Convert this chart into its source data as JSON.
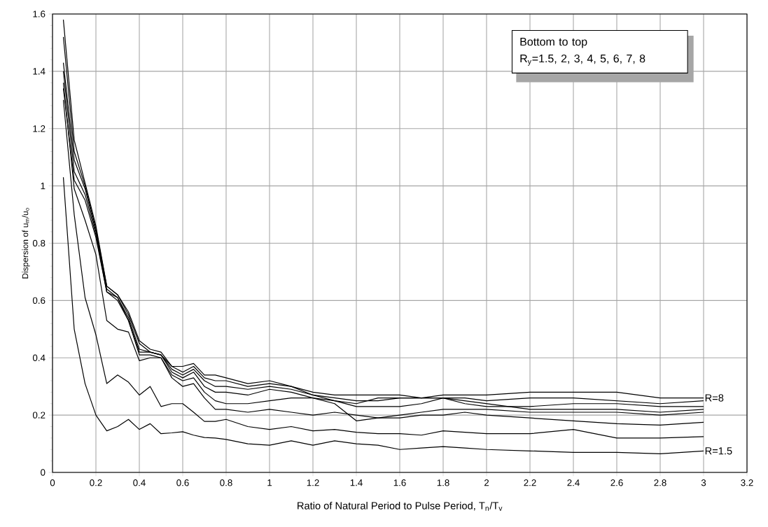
{
  "chart_data": {
    "type": "line",
    "xlabel": "Ratio of Natural Period to Pulse Period, T$_{n}$/T$_{v}$",
    "ylabel": "Dispersion of u$_{m}$/u$_{o}$",
    "annotations": [
      "Bottom to top",
      "R$_{y}$=1.5, 2, 3, 4, 5, 6, 7, 8"
    ],
    "x": [
      0.05,
      0.1,
      0.15,
      0.2,
      0.25,
      0.3,
      0.35,
      0.4,
      0.45,
      0.5,
      0.55,
      0.6,
      0.65,
      0.7,
      0.75,
      0.8,
      0.9,
      1.0,
      1.1,
      1.2,
      1.3,
      1.4,
      1.5,
      1.6,
      1.7,
      1.8,
      1.9,
      2.0,
      2.2,
      2.4,
      2.6,
      2.8,
      3.0
    ],
    "series": [
      {
        "name": "R=1.5",
        "color": "#000000",
        "values": [
          1.03,
          0.5,
          0.31,
          0.2,
          0.145,
          0.16,
          0.185,
          0.15,
          0.17,
          0.135,
          0.138,
          0.142,
          0.13,
          0.122,
          0.12,
          0.115,
          0.1,
          0.095,
          0.11,
          0.095,
          0.11,
          0.1,
          0.095,
          0.08,
          0.085,
          0.09,
          0.085,
          0.08,
          0.075,
          0.07,
          0.07,
          0.065,
          0.075
        ]
      },
      {
        "color": "#000000",
        "values": [
          1.3,
          0.9,
          0.61,
          0.48,
          0.31,
          0.34,
          0.315,
          0.27,
          0.3,
          0.23,
          0.24,
          0.24,
          0.21,
          0.178,
          0.178,
          0.185,
          0.16,
          0.15,
          0.16,
          0.145,
          0.15,
          0.14,
          0.135,
          0.135,
          0.13,
          0.145,
          0.14,
          0.135,
          0.135,
          0.15,
          0.12,
          0.12,
          0.125
        ]
      },
      {
        "color": "#000000",
        "values": [
          1.36,
          0.99,
          0.88,
          0.76,
          0.53,
          0.5,
          0.49,
          0.39,
          0.4,
          0.4,
          0.33,
          0.3,
          0.31,
          0.26,
          0.22,
          0.22,
          0.21,
          0.22,
          0.21,
          0.2,
          0.21,
          0.2,
          0.19,
          0.19,
          0.2,
          0.2,
          0.21,
          0.2,
          0.19,
          0.18,
          0.17,
          0.165,
          0.175
        ]
      },
      {
        "color": "#000000",
        "values": [
          1.34,
          1.02,
          0.95,
          0.82,
          0.63,
          0.6,
          0.53,
          0.41,
          0.41,
          0.4,
          0.34,
          0.32,
          0.33,
          0.28,
          0.25,
          0.24,
          0.24,
          0.25,
          0.26,
          0.26,
          0.24,
          0.18,
          0.19,
          0.2,
          0.21,
          0.22,
          0.22,
          0.22,
          0.21,
          0.21,
          0.21,
          0.2,
          0.21
        ]
      },
      {
        "color": "#000000",
        "values": [
          1.4,
          1.05,
          0.97,
          0.83,
          0.63,
          0.61,
          0.53,
          0.42,
          0.42,
          0.41,
          0.35,
          0.33,
          0.35,
          0.3,
          0.28,
          0.28,
          0.27,
          0.29,
          0.28,
          0.26,
          0.25,
          0.23,
          0.23,
          0.23,
          0.24,
          0.26,
          0.25,
          0.24,
          0.22,
          0.22,
          0.22,
          0.21,
          0.22
        ]
      },
      {
        "color": "#000000",
        "values": [
          1.43,
          1.09,
          0.99,
          0.84,
          0.64,
          0.61,
          0.54,
          0.43,
          0.42,
          0.41,
          0.36,
          0.34,
          0.36,
          0.32,
          0.3,
          0.3,
          0.29,
          0.3,
          0.29,
          0.27,
          0.25,
          0.24,
          0.26,
          0.26,
          0.26,
          0.26,
          0.24,
          0.23,
          0.23,
          0.24,
          0.24,
          0.23,
          0.23
        ]
      },
      {
        "color": "#000000",
        "values": [
          1.52,
          1.12,
          1.0,
          0.85,
          0.65,
          0.62,
          0.55,
          0.45,
          0.42,
          0.41,
          0.37,
          0.35,
          0.37,
          0.33,
          0.32,
          0.32,
          0.3,
          0.31,
          0.3,
          0.27,
          0.26,
          0.25,
          0.25,
          0.26,
          0.26,
          0.26,
          0.26,
          0.25,
          0.26,
          0.26,
          0.25,
          0.24,
          0.25
        ]
      },
      {
        "name": "R=8",
        "color": "#000000",
        "values": [
          1.58,
          1.16,
          1.01,
          0.86,
          0.65,
          0.62,
          0.56,
          0.46,
          0.43,
          0.42,
          0.37,
          0.37,
          0.38,
          0.34,
          0.34,
          0.33,
          0.31,
          0.32,
          0.3,
          0.28,
          0.27,
          0.27,
          0.27,
          0.27,
          0.26,
          0.27,
          0.27,
          0.27,
          0.28,
          0.28,
          0.28,
          0.26,
          0.26
        ]
      }
    ],
    "xlim": [
      0,
      3.2
    ],
    "xticks": [
      0,
      0.2,
      0.4,
      0.6,
      0.8,
      1,
      1.2,
      1.4,
      1.6,
      1.8,
      2,
      2.2,
      2.4,
      2.6,
      2.8,
      3,
      3.2
    ],
    "ylim": [
      0,
      1.6
    ],
    "yticks": [
      0,
      0.2,
      0.4,
      0.6,
      0.8,
      1,
      1.2,
      1.4,
      1.6
    ],
    "grid": true,
    "marker": "none",
    "line_style": "solid"
  }
}
